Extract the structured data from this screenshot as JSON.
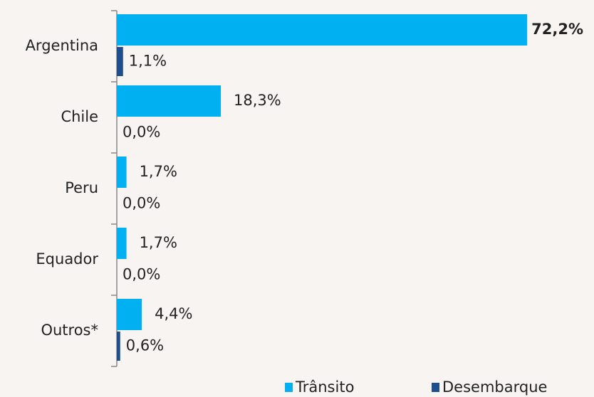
{
  "chart_data": {
    "type": "bar",
    "orientation": "horizontal",
    "categories": [
      "Argentina",
      "Chile",
      "Peru",
      "Equador",
      "Outros*"
    ],
    "series": [
      {
        "name": "Trânsito",
        "color": "#00b0f0",
        "values": [
          72.2,
          18.3,
          1.7,
          1.7,
          4.4
        ],
        "value_labels": [
          "72,2%",
          "18,3%",
          "1,7%",
          "1,7%",
          "4,4%"
        ]
      },
      {
        "name": "Desembarque",
        "color": "#1f4e8c",
        "values": [
          1.1,
          0.0,
          0.0,
          0.0,
          0.6
        ],
        "value_labels": [
          "1,1%",
          "0,0%",
          "0,0%",
          "0,0%",
          "0,6%"
        ]
      }
    ]
  }
}
